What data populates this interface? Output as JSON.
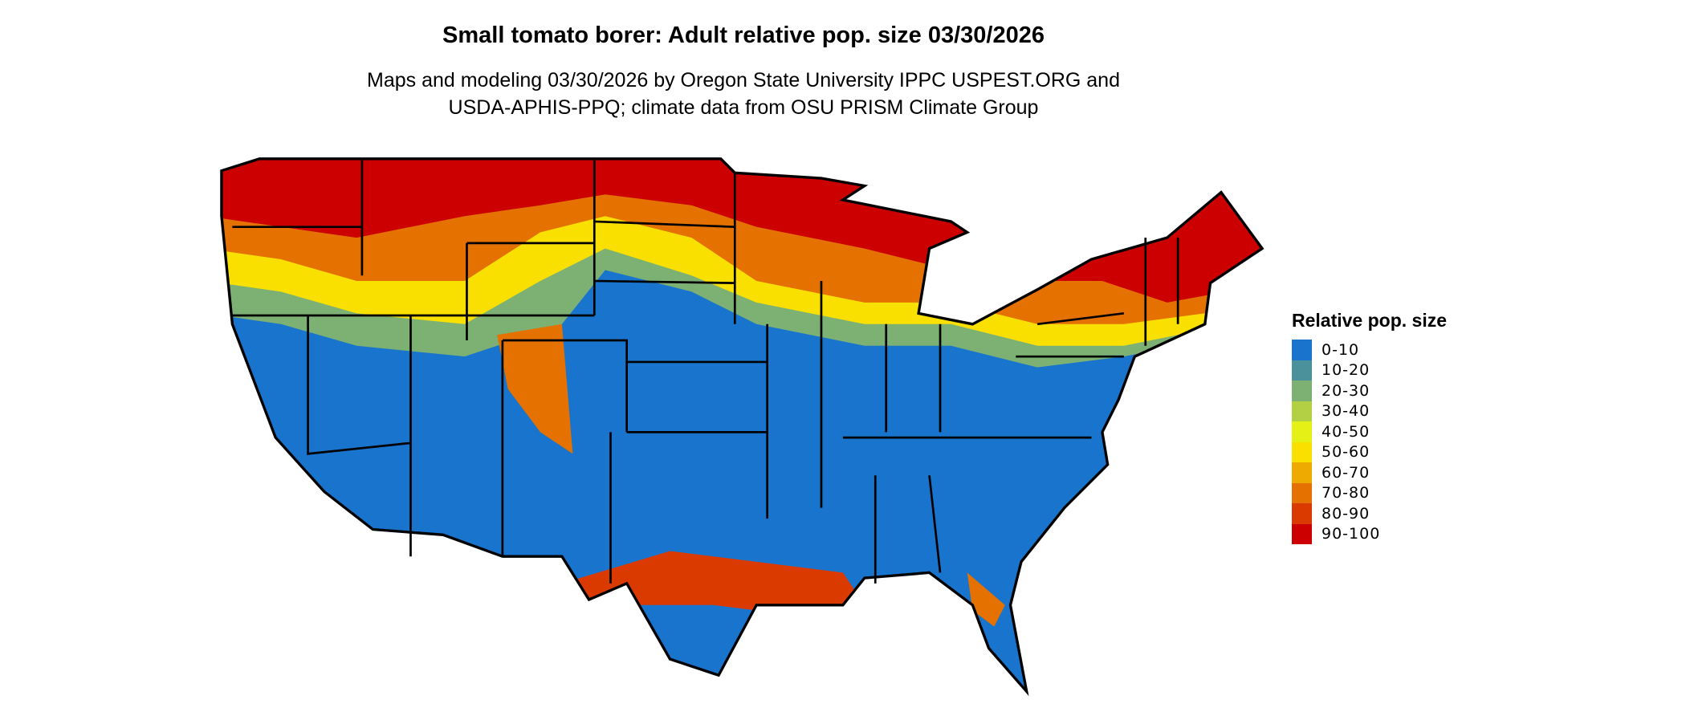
{
  "title": "Small tomato borer: Adult relative pop. size 03/30/2026",
  "subtitle": [
    "Maps and modeling 03/30/2026 by Oregon State University IPPC USPEST.ORG and",
    "USDA-APHIS-PPQ; climate data from OSU PRISM Climate Group"
  ],
  "legend": {
    "title": "Relative pop. size",
    "items": [
      {
        "label": "0-10",
        "color": "#1874CD"
      },
      {
        "label": "10-20",
        "color": "#4A919B"
      },
      {
        "label": "20-30",
        "color": "#7DB073"
      },
      {
        "label": "30-40",
        "color": "#B3D045"
      },
      {
        "label": "40-50",
        "color": "#E5F016"
      },
      {
        "label": "50-60",
        "color": "#F9E000"
      },
      {
        "label": "60-70",
        "color": "#EFAA00"
      },
      {
        "label": "70-80",
        "color": "#E47100"
      },
      {
        "label": "80-90",
        "color": "#DA3A00"
      },
      {
        "label": "90-100",
        "color": "#CC0000"
      }
    ]
  }
}
